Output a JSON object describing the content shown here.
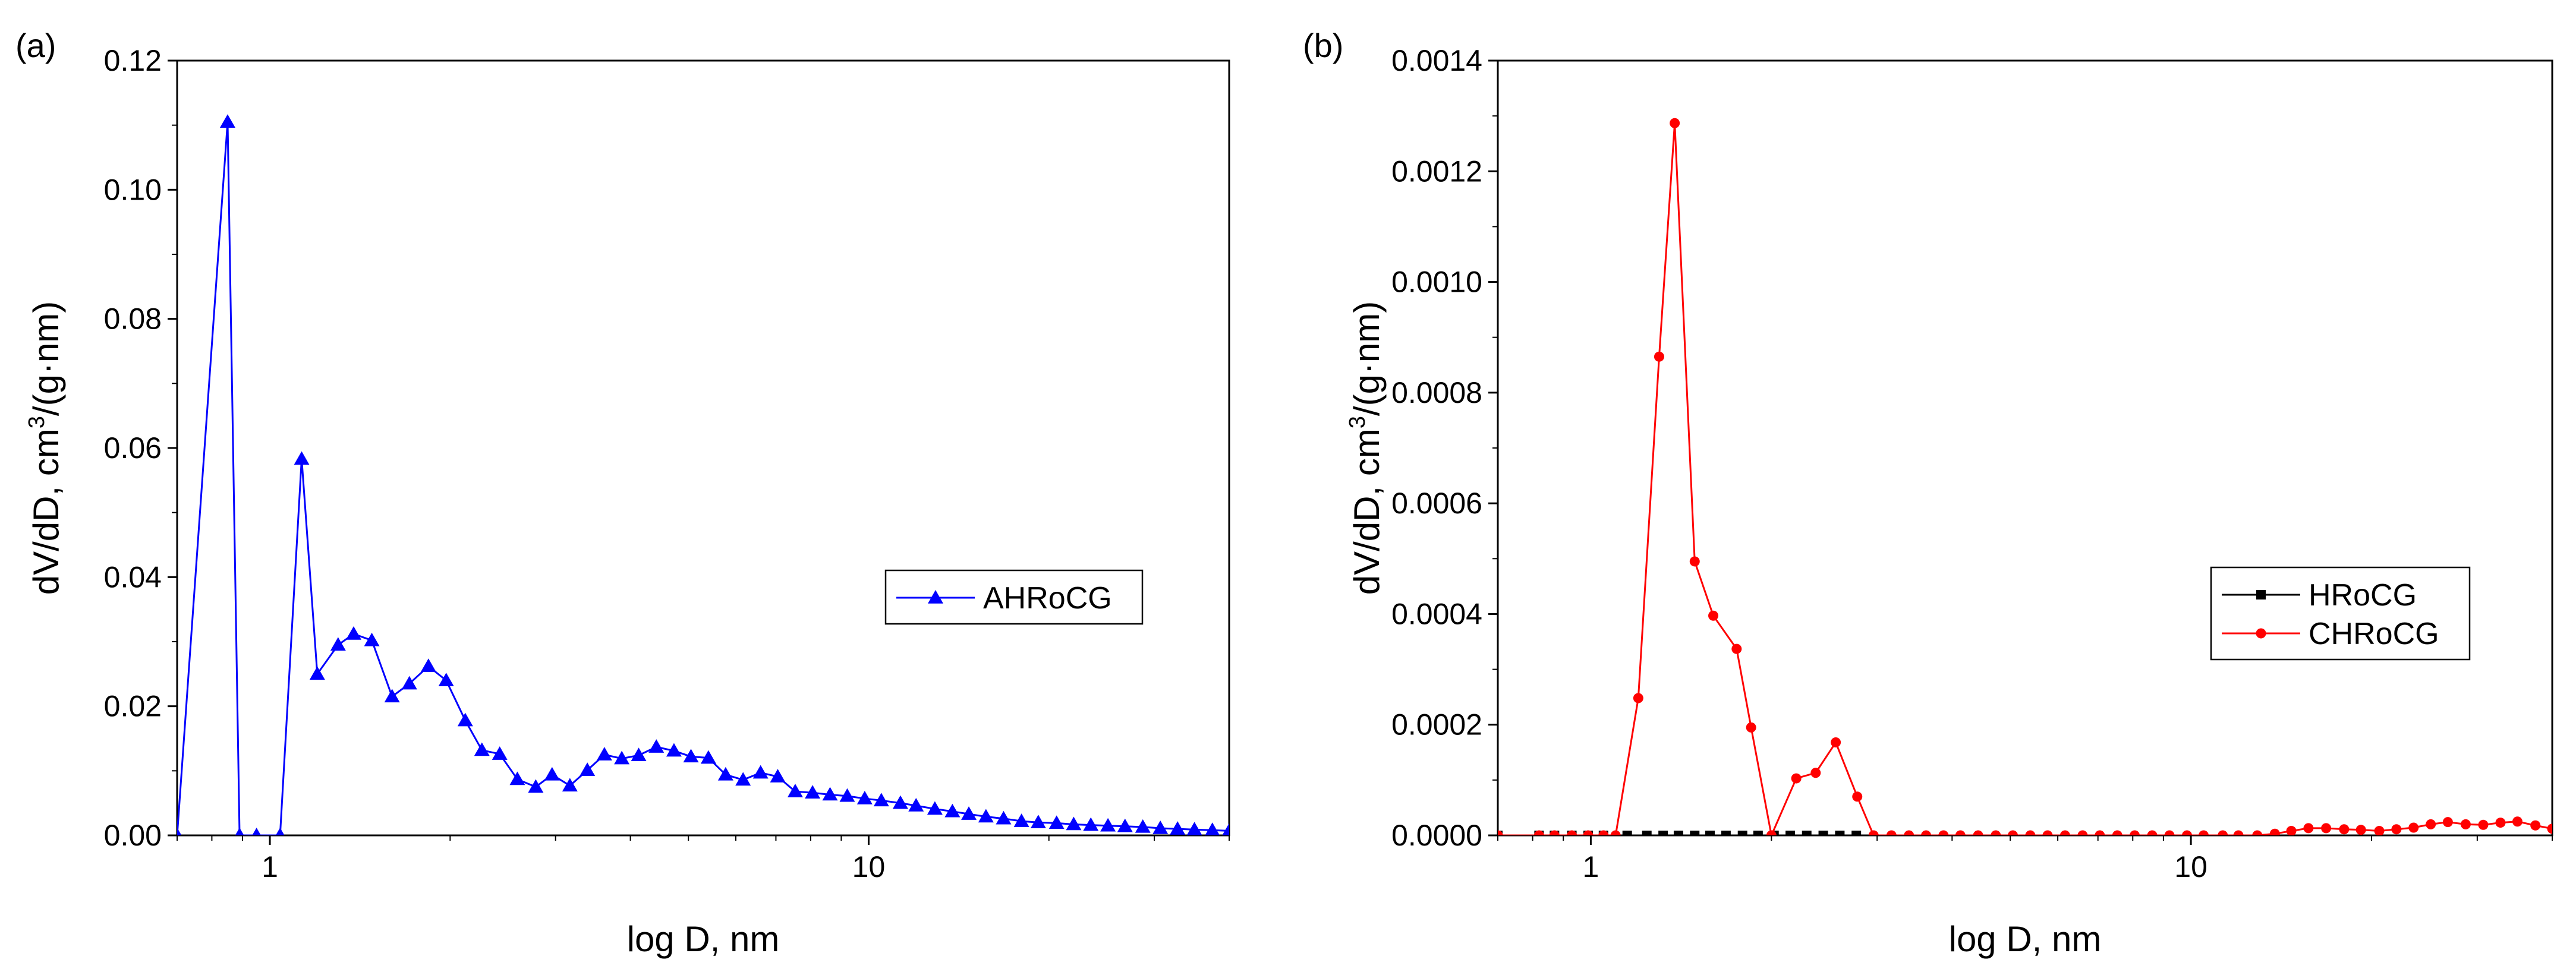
{
  "chart_data": [
    {
      "panel_label": "(a)",
      "type": "line",
      "x_scale": "log",
      "xlim": [
        0.7,
        40
      ],
      "ylim": [
        0,
        0.12
      ],
      "xticks": [
        1,
        10
      ],
      "xtick_labels": [
        "1",
        "10"
      ],
      "yticks": [
        0,
        0.02,
        0.04,
        0.06,
        0.08,
        0.1,
        0.12
      ],
      "ytick_labels": [
        "0.00",
        "0.02",
        "0.04",
        "0.06",
        "0.08",
        "0.10",
        "0.12"
      ],
      "xlabel": "log D, nm",
      "ylabel_main": "dV/dD, cm",
      "ylabel_sup": "3",
      "ylabel_tail": "/(g·nm)",
      "legend_position": "middle-right",
      "series": [
        {
          "name": "AHRoCG",
          "color": "#0000ff",
          "marker": "triangle",
          "x": [
            0.7,
            0.85,
            0.89,
            0.95,
            1.04,
            1.13,
            1.2,
            1.3,
            1.38,
            1.48,
            1.6,
            1.71,
            1.84,
            1.97,
            2.12,
            2.26,
            2.42,
            2.59,
            2.78,
            2.96,
            3.17,
            3.39,
            3.62,
            3.87,
            4.13,
            4.42,
            4.73,
            5.05,
            5.4,
            5.77,
            6.17,
            6.6,
            7.05,
            7.54,
            8.06,
            8.62,
            9.21,
            9.85,
            10.5,
            11.3,
            12.0,
            12.9,
            13.8,
            14.7,
            15.7,
            16.8,
            18.0,
            19.2,
            20.6,
            22.0,
            23.5,
            25.1,
            26.8,
            28.7,
            30.7,
            32.8,
            35.0,
            37.5,
            40.0
          ],
          "y": [
            0.0,
            0.1105,
            0.0,
            0.0,
            0.0,
            0.0583,
            0.025,
            0.0295,
            0.0312,
            0.0302,
            0.0215,
            0.0235,
            0.0262,
            0.024,
            0.0178,
            0.0132,
            0.0126,
            0.0087,
            0.0075,
            0.0094,
            0.0077,
            0.0101,
            0.0125,
            0.0119,
            0.0124,
            0.0137,
            0.0131,
            0.0122,
            0.012,
            0.0094,
            0.0086,
            0.0097,
            0.0091,
            0.0068,
            0.0066,
            0.0063,
            0.0061,
            0.0057,
            0.0054,
            0.005,
            0.0046,
            0.0041,
            0.0037,
            0.0033,
            0.0029,
            0.0026,
            0.0022,
            0.002,
            0.0019,
            0.0017,
            0.0016,
            0.0015,
            0.0014,
            0.0013,
            0.0011,
            0.001,
            0.0009,
            0.0008,
            0.0007
          ]
        }
      ]
    },
    {
      "panel_label": "(b)",
      "type": "line",
      "x_scale": "log",
      "xlim": [
        0.7,
        40
      ],
      "ylim": [
        0,
        0.0014
      ],
      "xticks": [
        1,
        10
      ],
      "xtick_labels": [
        "1",
        "10"
      ],
      "yticks": [
        0,
        0.0002,
        0.0004,
        0.0006,
        0.0008,
        0.001,
        0.0012,
        0.0014
      ],
      "ytick_labels": [
        "0.0000",
        "0.0002",
        "0.0004",
        "0.0006",
        "0.0008",
        "0.0010",
        "0.0012",
        "0.0014"
      ],
      "xlabel": "log D, nm",
      "ylabel_main": "dV/dD, cm",
      "ylabel_sup": "3",
      "ylabel_tail": "/(g·nm)",
      "legend_position": "middle-right",
      "series": [
        {
          "name": "HRoCG",
          "color": "#000000",
          "marker": "square",
          "x": [
            0.7,
            0.82,
            0.87,
            0.93,
            0.99,
            1.05,
            1.15,
            1.24,
            1.32,
            1.4,
            1.49,
            1.58,
            1.68,
            1.79,
            1.9,
            2.02,
            2.15,
            2.29,
            2.44,
            2.6,
            2.77
          ],
          "y": [
            0,
            0,
            0,
            0,
            0,
            0,
            0,
            0,
            0,
            0,
            0,
            0,
            0,
            0,
            0,
            0,
            0,
            0,
            0,
            0,
            0
          ]
        },
        {
          "name": "CHRoCG",
          "color": "#ff0000",
          "marker": "circle",
          "x": [
            0.7,
            0.82,
            0.87,
            0.93,
            0.99,
            1.05,
            1.1,
            1.2,
            1.3,
            1.38,
            1.49,
            1.6,
            1.75,
            1.85,
            2.0,
            2.2,
            2.37,
            2.56,
            2.78,
            2.96,
            3.17,
            3.39,
            3.62,
            3.87,
            4.13,
            4.42,
            4.73,
            5.05,
            5.4,
            5.77,
            6.17,
            6.6,
            7.05,
            7.54,
            8.06,
            8.62,
            9.21,
            9.85,
            10.5,
            11.3,
            12.0,
            12.9,
            13.8,
            14.7,
            15.7,
            16.8,
            18.0,
            19.2,
            20.6,
            22.0,
            23.5,
            25.1,
            26.8,
            28.7,
            30.7,
            32.8,
            35.0,
            37.5,
            40.0
          ],
          "y": [
            0,
            0,
            0,
            0,
            0,
            0,
            0,
            0.000248,
            0.000865,
            0.001287,
            0.000495,
            0.000397,
            0.000337,
            0.000195,
            0.0,
            0.000103,
            0.000113,
            0.000168,
            7e-05,
            0,
            0,
            0,
            0,
            0,
            0,
            0,
            0,
            0,
            0,
            0,
            0,
            0,
            0,
            0,
            0,
            0,
            0,
            0,
            0,
            0,
            0,
            0,
            3e-06,
            8e-06,
            1.3e-05,
            1.3e-05,
            1.1e-05,
            1e-05,
            8e-06,
            1.1e-05,
            1.4e-05,
            2e-05,
            2.4e-05,
            2e-05,
            1.9e-05,
            2.3e-05,
            2.5e-05,
            1.8e-05,
            1.2e-05
          ]
        }
      ]
    }
  ]
}
